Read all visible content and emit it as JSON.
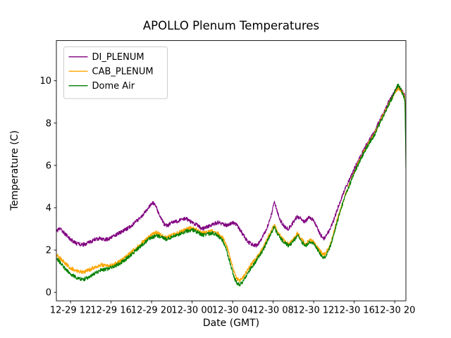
{
  "figure": {
    "background": "#ffffff",
    "axes_edge_color": "#000000",
    "legend_edge_color": "#cccccc"
  },
  "chart_data": {
    "type": "line",
    "title": "APOLLO Plenum Temperatures",
    "xlabel": "Date (GMT)",
    "ylabel": "Temperature (C)",
    "xlim": [
      10.6,
      45.1
    ],
    "ylim": [
      -0.4,
      11.9
    ],
    "grid": false,
    "legend_position": "upper-left",
    "noise_amp": 0.09,
    "yticks": [
      0,
      2,
      4,
      6,
      8,
      10
    ],
    "xticks": [
      {
        "t": 12,
        "label": "12-29 12"
      },
      {
        "t": 16,
        "label": "12-29 16"
      },
      {
        "t": 20,
        "label": "12-29 20"
      },
      {
        "t": 24,
        "label": "12-30 00"
      },
      {
        "t": 28,
        "label": "12-30 04"
      },
      {
        "t": 32,
        "label": "12-30 08"
      },
      {
        "t": 36,
        "label": "12-30 12"
      },
      {
        "t": 40,
        "label": "12-30 16"
      },
      {
        "t": 44,
        "label": "12-30 20"
      }
    ],
    "series": [
      {
        "name": "DI_PLENUM",
        "color": "#800080",
        "points": [
          [
            10.6,
            2.9
          ],
          [
            11.0,
            3.0
          ],
          [
            11.5,
            2.75
          ],
          [
            12.0,
            2.5
          ],
          [
            12.6,
            2.3
          ],
          [
            13.2,
            2.25
          ],
          [
            13.8,
            2.35
          ],
          [
            14.4,
            2.5
          ],
          [
            15.0,
            2.55
          ],
          [
            15.6,
            2.5
          ],
          [
            16.2,
            2.65
          ],
          [
            16.8,
            2.8
          ],
          [
            17.4,
            2.95
          ],
          [
            18.0,
            3.15
          ],
          [
            18.6,
            3.4
          ],
          [
            19.2,
            3.7
          ],
          [
            19.7,
            4.0
          ],
          [
            20.1,
            4.25
          ],
          [
            20.4,
            4.1
          ],
          [
            20.8,
            3.6
          ],
          [
            21.2,
            3.25
          ],
          [
            21.6,
            3.15
          ],
          [
            22.0,
            3.3
          ],
          [
            22.5,
            3.35
          ],
          [
            23.0,
            3.45
          ],
          [
            23.4,
            3.5
          ],
          [
            23.8,
            3.35
          ],
          [
            24.2,
            3.25
          ],
          [
            24.6,
            3.15
          ],
          [
            25.0,
            3.0
          ],
          [
            25.5,
            3.1
          ],
          [
            26.0,
            3.2
          ],
          [
            26.5,
            3.3
          ],
          [
            27.0,
            3.25
          ],
          [
            27.5,
            3.15
          ],
          [
            28.0,
            3.3
          ],
          [
            28.4,
            3.2
          ],
          [
            28.8,
            2.9
          ],
          [
            29.2,
            2.6
          ],
          [
            29.6,
            2.35
          ],
          [
            30.0,
            2.25
          ],
          [
            30.4,
            2.2
          ],
          [
            30.8,
            2.5
          ],
          [
            31.2,
            2.85
          ],
          [
            31.6,
            3.3
          ],
          [
            31.9,
            3.8
          ],
          [
            32.1,
            4.3
          ],
          [
            32.35,
            3.9
          ],
          [
            32.7,
            3.4
          ],
          [
            33.1,
            3.1
          ],
          [
            33.5,
            3.0
          ],
          [
            33.9,
            3.25
          ],
          [
            34.3,
            3.55
          ],
          [
            34.7,
            3.5
          ],
          [
            35.1,
            3.3
          ],
          [
            35.5,
            3.55
          ],
          [
            35.9,
            3.45
          ],
          [
            36.3,
            3.1
          ],
          [
            36.7,
            2.7
          ],
          [
            37.0,
            2.55
          ],
          [
            37.4,
            2.8
          ],
          [
            37.9,
            3.3
          ],
          [
            38.3,
            3.9
          ],
          [
            38.7,
            4.4
          ],
          [
            39.1,
            4.9
          ],
          [
            39.6,
            5.4
          ],
          [
            40.0,
            5.85
          ],
          [
            40.5,
            6.3
          ],
          [
            41.0,
            6.8
          ],
          [
            41.5,
            7.2
          ],
          [
            42.0,
            7.6
          ],
          [
            42.5,
            8.1
          ],
          [
            43.0,
            8.6
          ],
          [
            43.5,
            9.1
          ],
          [
            44.0,
            9.5
          ],
          [
            44.3,
            9.7
          ],
          [
            44.6,
            9.6
          ],
          [
            44.85,
            9.4
          ],
          [
            45.0,
            9.3
          ],
          [
            45.05,
            8.2
          ],
          [
            45.1,
            6.3
          ]
        ]
      },
      {
        "name": "CAB_PLENUM",
        "color": "#ffa500",
        "points": [
          [
            10.6,
            1.75
          ],
          [
            11.0,
            1.6
          ],
          [
            11.5,
            1.35
          ],
          [
            12.0,
            1.15
          ],
          [
            12.6,
            1.0
          ],
          [
            13.2,
            0.95
          ],
          [
            13.8,
            1.05
          ],
          [
            14.4,
            1.2
          ],
          [
            15.0,
            1.3
          ],
          [
            15.6,
            1.25
          ],
          [
            16.2,
            1.3
          ],
          [
            16.8,
            1.45
          ],
          [
            17.4,
            1.65
          ],
          [
            18.0,
            1.9
          ],
          [
            18.6,
            2.15
          ],
          [
            19.2,
            2.4
          ],
          [
            19.7,
            2.6
          ],
          [
            20.1,
            2.75
          ],
          [
            20.5,
            2.85
          ],
          [
            21.0,
            2.7
          ],
          [
            21.5,
            2.6
          ],
          [
            22.0,
            2.7
          ],
          [
            22.5,
            2.8
          ],
          [
            23.0,
            2.9
          ],
          [
            23.5,
            3.0
          ],
          [
            24.0,
            3.05
          ],
          [
            24.5,
            2.95
          ],
          [
            25.0,
            2.8
          ],
          [
            25.5,
            2.85
          ],
          [
            26.0,
            2.9
          ],
          [
            26.5,
            2.8
          ],
          [
            27.0,
            2.6
          ],
          [
            27.4,
            2.2
          ],
          [
            27.8,
            1.6
          ],
          [
            28.1,
            1.0
          ],
          [
            28.4,
            0.65
          ],
          [
            28.7,
            0.55
          ],
          [
            29.0,
            0.7
          ],
          [
            29.4,
            1.0
          ],
          [
            29.8,
            1.3
          ],
          [
            30.2,
            1.55
          ],
          [
            30.6,
            1.8
          ],
          [
            31.0,
            2.1
          ],
          [
            31.4,
            2.5
          ],
          [
            31.8,
            2.9
          ],
          [
            32.1,
            3.2
          ],
          [
            32.4,
            2.9
          ],
          [
            32.8,
            2.6
          ],
          [
            33.2,
            2.4
          ],
          [
            33.6,
            2.3
          ],
          [
            34.0,
            2.5
          ],
          [
            34.4,
            2.8
          ],
          [
            34.8,
            2.5
          ],
          [
            35.2,
            2.3
          ],
          [
            35.6,
            2.5
          ],
          [
            36.0,
            2.4
          ],
          [
            36.4,
            2.1
          ],
          [
            36.8,
            1.85
          ],
          [
            37.1,
            1.8
          ],
          [
            37.5,
            2.1
          ],
          [
            37.9,
            2.7
          ],
          [
            38.3,
            3.4
          ],
          [
            38.7,
            4.0
          ],
          [
            39.1,
            4.6
          ],
          [
            39.6,
            5.2
          ],
          [
            40.0,
            5.7
          ],
          [
            40.5,
            6.2
          ],
          [
            41.0,
            6.7
          ],
          [
            41.5,
            7.1
          ],
          [
            42.0,
            7.5
          ],
          [
            42.5,
            8.0
          ],
          [
            43.0,
            8.5
          ],
          [
            43.5,
            9.0
          ],
          [
            44.0,
            9.4
          ],
          [
            44.3,
            9.65
          ],
          [
            44.6,
            9.55
          ],
          [
            44.85,
            9.35
          ],
          [
            45.0,
            9.2
          ],
          [
            45.05,
            8.3
          ],
          [
            45.1,
            6.6
          ]
        ]
      },
      {
        "name": "Dome Air",
        "color": "#008000",
        "points": [
          [
            10.6,
            1.6
          ],
          [
            11.0,
            1.4
          ],
          [
            11.5,
            1.1
          ],
          [
            12.0,
            0.85
          ],
          [
            12.6,
            0.7
          ],
          [
            13.2,
            0.6
          ],
          [
            13.8,
            0.7
          ],
          [
            14.4,
            0.9
          ],
          [
            15.0,
            1.05
          ],
          [
            15.6,
            1.1
          ],
          [
            16.2,
            1.2
          ],
          [
            16.8,
            1.35
          ],
          [
            17.4,
            1.55
          ],
          [
            18.0,
            1.8
          ],
          [
            18.6,
            2.05
          ],
          [
            19.2,
            2.3
          ],
          [
            19.7,
            2.5
          ],
          [
            20.1,
            2.6
          ],
          [
            20.5,
            2.7
          ],
          [
            21.0,
            2.6
          ],
          [
            21.5,
            2.5
          ],
          [
            22.0,
            2.6
          ],
          [
            22.5,
            2.7
          ],
          [
            23.0,
            2.8
          ],
          [
            23.5,
            2.9
          ],
          [
            24.0,
            2.95
          ],
          [
            24.5,
            2.85
          ],
          [
            25.0,
            2.7
          ],
          [
            25.5,
            2.75
          ],
          [
            26.0,
            2.8
          ],
          [
            26.5,
            2.7
          ],
          [
            27.0,
            2.45
          ],
          [
            27.4,
            2.0
          ],
          [
            27.8,
            1.3
          ],
          [
            28.1,
            0.75
          ],
          [
            28.4,
            0.45
          ],
          [
            28.7,
            0.35
          ],
          [
            29.0,
            0.5
          ],
          [
            29.4,
            0.85
          ],
          [
            29.8,
            1.15
          ],
          [
            30.2,
            1.4
          ],
          [
            30.6,
            1.7
          ],
          [
            31.0,
            2.0
          ],
          [
            31.4,
            2.4
          ],
          [
            31.8,
            2.8
          ],
          [
            32.1,
            3.1
          ],
          [
            32.4,
            2.8
          ],
          [
            32.8,
            2.5
          ],
          [
            33.2,
            2.3
          ],
          [
            33.6,
            2.2
          ],
          [
            34.0,
            2.4
          ],
          [
            34.4,
            2.7
          ],
          [
            34.8,
            2.4
          ],
          [
            35.2,
            2.2
          ],
          [
            35.6,
            2.4
          ],
          [
            36.0,
            2.3
          ],
          [
            36.4,
            2.0
          ],
          [
            36.8,
            1.7
          ],
          [
            37.1,
            1.65
          ],
          [
            37.5,
            2.0
          ],
          [
            37.9,
            2.6
          ],
          [
            38.3,
            3.3
          ],
          [
            38.7,
            3.95
          ],
          [
            39.1,
            4.55
          ],
          [
            39.6,
            5.15
          ],
          [
            40.0,
            5.65
          ],
          [
            40.5,
            6.15
          ],
          [
            41.0,
            6.65
          ],
          [
            41.5,
            7.05
          ],
          [
            42.0,
            7.45
          ],
          [
            42.5,
            7.95
          ],
          [
            43.0,
            8.45
          ],
          [
            43.5,
            8.95
          ],
          [
            44.0,
            9.45
          ],
          [
            44.3,
            9.8
          ],
          [
            44.6,
            9.6
          ],
          [
            44.85,
            9.3
          ],
          [
            45.0,
            9.1
          ],
          [
            45.05,
            7.9
          ],
          [
            45.1,
            5.9
          ]
        ]
      }
    ]
  }
}
